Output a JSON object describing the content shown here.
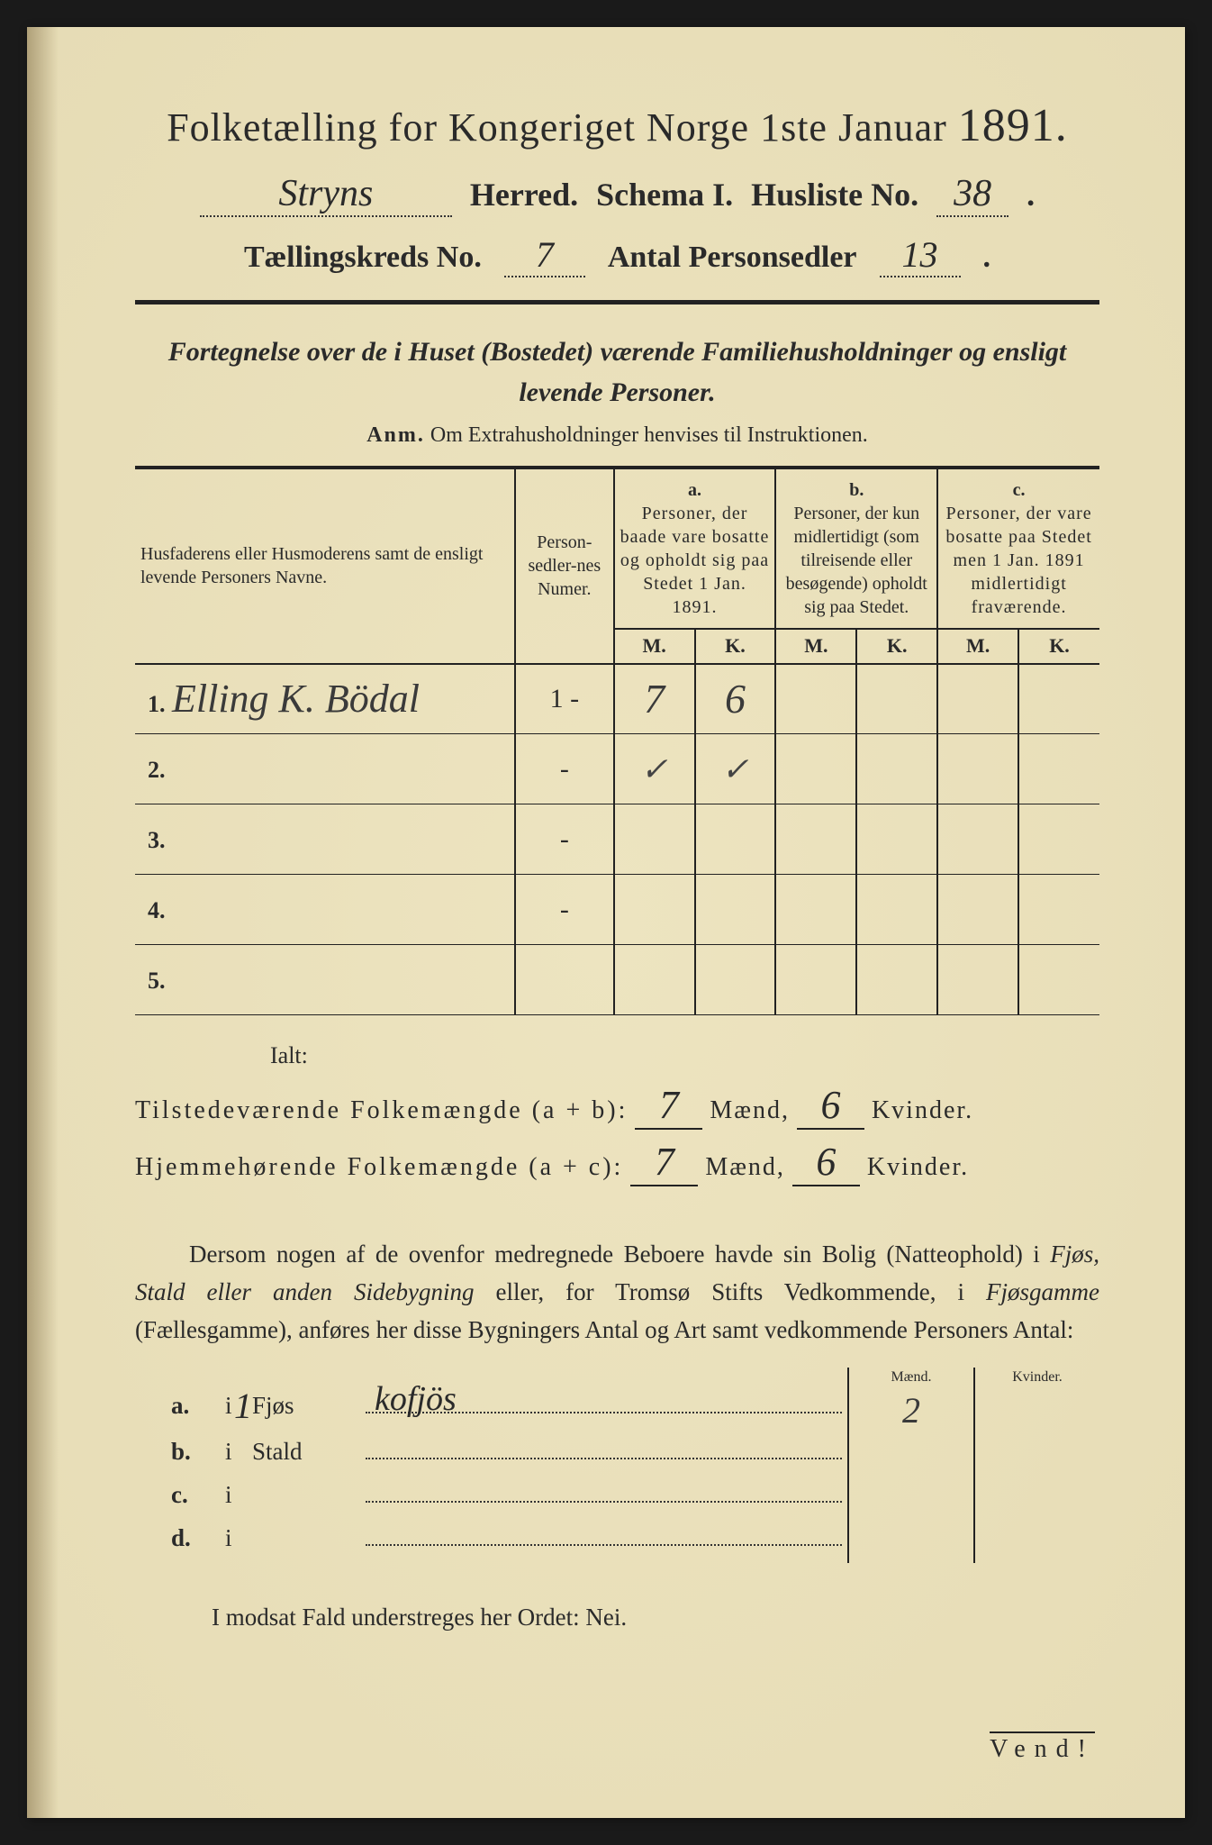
{
  "title": {
    "main_a": "Folketælling for Kongeriget Norge 1ste Januar",
    "year": "1891.",
    "herred_value": "Stryns",
    "herred_label": "Herred.",
    "schema": "Schema I.",
    "husliste_label": "Husliste No.",
    "husliste_value": "38",
    "kreds_label": "Tællingskreds No.",
    "kreds_value": "7",
    "personsedler_label": "Antal Personsedler",
    "personsedler_value": "13"
  },
  "description": "Fortegnelse over de i Huset (Bostedet) værende Familiehusholdninger og ensligt levende Personer.",
  "anm_bold": "Anm.",
  "anm_text": "Om Extrahusholdninger henvises til Instruktionen.",
  "table": {
    "col_name": "Husfaderens eller Husmoderens samt de ensligt levende Personers Navne.",
    "col_num": "Person-sedler-nes Numer.",
    "col_a_label": "a.",
    "col_a": "Personer, der baade vare bosatte og opholdt sig paa Stedet 1 Jan. 1891.",
    "col_b_label": "b.",
    "col_b": "Personer, der kun midlertidigt (som tilreisende eller besøgende) opholdt sig paa Stedet.",
    "col_c_label": "c.",
    "col_c": "Personer, der vare bosatte paa Stedet men 1 Jan. 1891 midlertidigt fraværende.",
    "M": "M.",
    "K": "K.",
    "rows": [
      {
        "n": "1.",
        "name": "Elling K. Bödal",
        "num": "1 -",
        "aM": "7",
        "aK": "6",
        "bM": "",
        "bK": "",
        "cM": "",
        "cK": ""
      },
      {
        "n": "2.",
        "name": "",
        "num": "-",
        "aM": "✓",
        "aK": "✓",
        "bM": "",
        "bK": "",
        "cM": "",
        "cK": ""
      },
      {
        "n": "3.",
        "name": "",
        "num": "-",
        "aM": "",
        "aK": "",
        "bM": "",
        "bK": "",
        "cM": "",
        "cK": ""
      },
      {
        "n": "4.",
        "name": "",
        "num": "-",
        "aM": "",
        "aK": "",
        "bM": "",
        "bK": "",
        "cM": "",
        "cK": ""
      },
      {
        "n": "5.",
        "name": "",
        "num": "",
        "aM": "",
        "aK": "",
        "bM": "",
        "bK": "",
        "cM": "",
        "cK": ""
      }
    ]
  },
  "ialt": "Ialt:",
  "sum_present_label": "Tilstedeværende Folkemængde (a + b):",
  "sum_home_label": "Hjemmehørende Folkemængde (a + c):",
  "maend": "Mænd,",
  "maend2": "Mænd,",
  "kvinder": "Kvinder.",
  "sum_present_M": "7",
  "sum_present_K": "6",
  "sum_home_M": "7",
  "sum_home_K": "6",
  "para_text_a": "Dersom nogen af de ovenfor medregnede Beboere havde sin Bolig (Natteophold) i ",
  "para_ital_a": "Fjøs, Stald eller anden Sidebygning",
  "para_text_b": " eller, for Tromsø Stifts Vedkommende, i ",
  "para_ital_b": "Fjøsgamme",
  "para_text_c": " (Fællesgamme), anføres her disse Bygningers Antal og Art samt vedkommende Personers Antal:",
  "col_maend": "Mænd.",
  "col_kvinder": "Kvinder.",
  "buildings": [
    {
      "lab": "a.",
      "i": "i",
      "count": "1",
      "type": "Fjøs",
      "val": "kofjös",
      "m": "2",
      "k": ""
    },
    {
      "lab": "b.",
      "i": "i",
      "count": "",
      "type": "Stald",
      "val": "",
      "m": "",
      "k": ""
    },
    {
      "lab": "c.",
      "i": "i",
      "count": "",
      "type": "",
      "val": "",
      "m": "",
      "k": ""
    },
    {
      "lab": "d.",
      "i": "i",
      "count": "",
      "type": "",
      "val": "",
      "m": "",
      "k": ""
    }
  ],
  "modsat": "I modsat Fald understreges her Ordet: Nei.",
  "vend": "Vend!"
}
